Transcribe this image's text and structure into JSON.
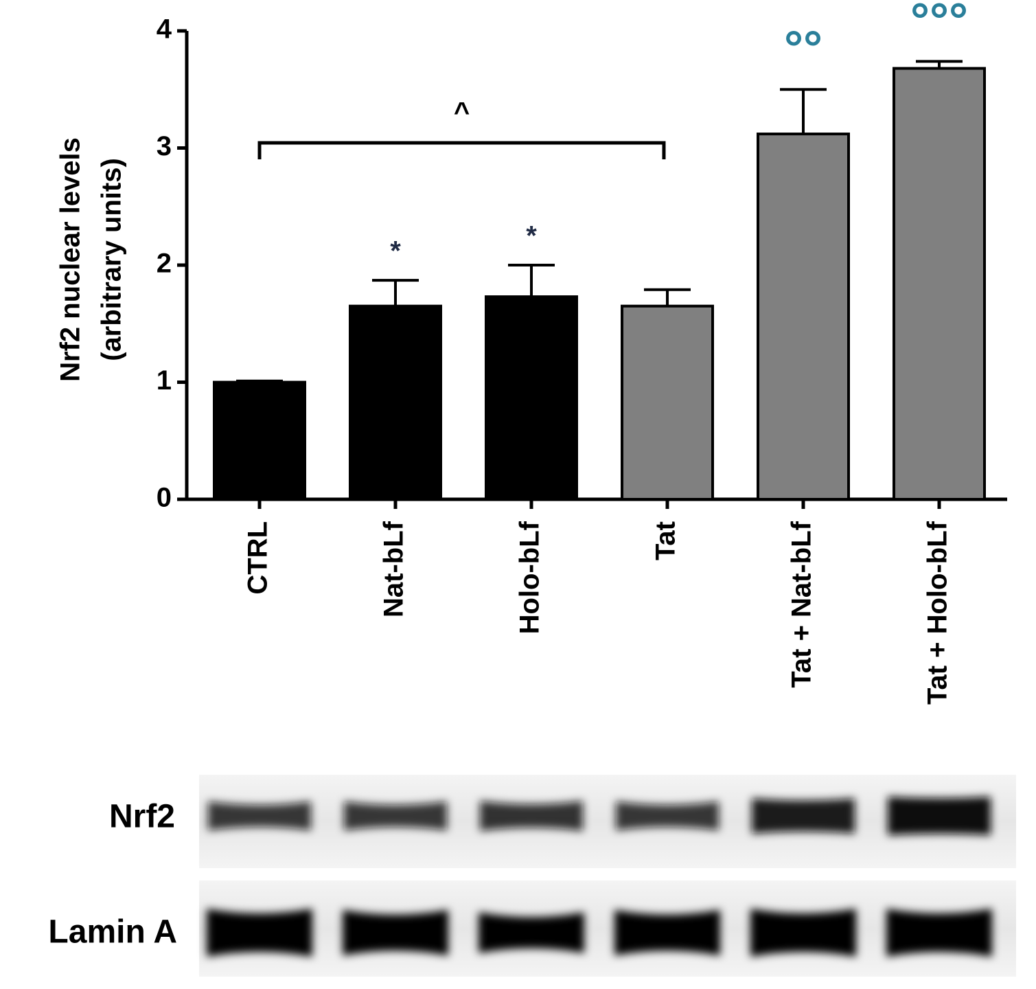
{
  "chart_data": {
    "type": "bar",
    "y_label": [
      "Nrf2 nuclear levels",
      "(arbitrary units)"
    ],
    "categories": [
      "CTRL",
      "Nat-bLf",
      "Holo-bLf",
      "Tat",
      "Tat + Nat-bLf",
      "Tat + Holo-bLf"
    ],
    "values": [
      1.0,
      1.65,
      1.73,
      1.65,
      3.12,
      3.68
    ],
    "errors": [
      0.01,
      0.22,
      0.27,
      0.14,
      0.38,
      0.06
    ],
    "colors": [
      "#000000",
      "#000000",
      "#000000",
      "#808080",
      "#808080",
      "#808080"
    ],
    "markers": [
      null,
      "*",
      "*",
      null,
      "°°",
      "°°°"
    ],
    "bracket_label": "^",
    "ylim": [
      0,
      4
    ],
    "yticks": [
      0,
      1,
      2,
      3,
      4
    ],
    "grid": false,
    "blot_labels": [
      "Nrf2",
      "Lamin A"
    ]
  }
}
